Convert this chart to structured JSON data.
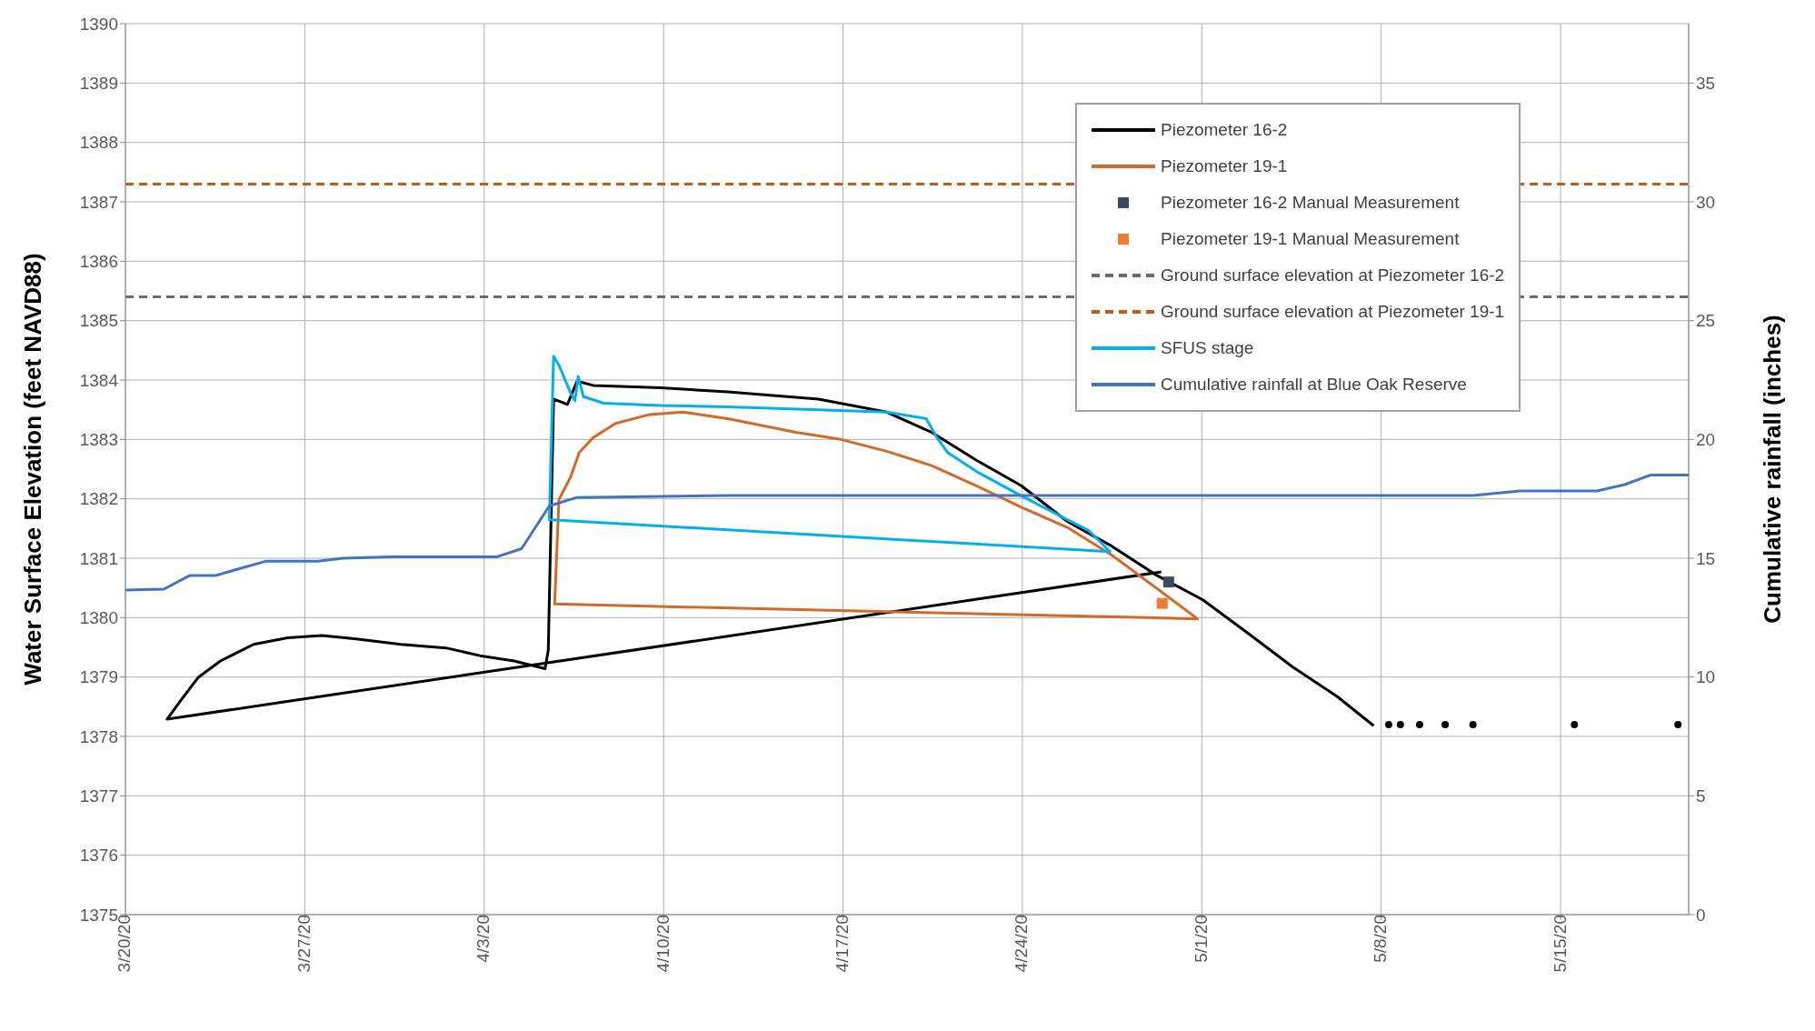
{
  "chart_data": {
    "type": "line",
    "ylabel": "Water Surface Elevation (feet NAVD88)",
    "y2label": "Cumulative rainfall (inches)",
    "xlim": [
      "--03-20",
      "--05-20"
    ],
    "xticks": [
      {
        "value": "--03-20",
        "label": "3/20/20"
      },
      {
        "value": "--03-27",
        "label": "3/27/20"
      },
      {
        "value": "--04-03",
        "label": "4/3/20"
      },
      {
        "value": "--04-10",
        "label": "4/10/20"
      },
      {
        "value": "--04-17",
        "label": "4/17/20"
      },
      {
        "value": "--04-24",
        "label": "4/24/20"
      },
      {
        "value": "--05-01",
        "label": "5/1/20"
      },
      {
        "value": "--05-08",
        "label": "5/8/20"
      },
      {
        "value": "--05-15",
        "label": "5/15/20"
      }
    ],
    "ylim": [
      1375,
      1390
    ],
    "yticks": [
      1375,
      1376,
      1377,
      1378,
      1379,
      1380,
      1381,
      1382,
      1383,
      1384,
      1385,
      1386,
      1387,
      1388,
      1389,
      1390
    ],
    "y2lim": [
      0,
      37.5
    ],
    "y2ticks": [
      0,
      5,
      10,
      15,
      20,
      25,
      30,
      35
    ],
    "grid": true,
    "legend": "top right",
    "series": [
      {
        "name": "Piezometer 16-2",
        "color": "#000000",
        "x": [
          "--04-29T10:00",
          "--03-21T15:00",
          "--03-22T04:00",
          "--03-22T20:00",
          "--03-23T17:00",
          "--03-25T00:00",
          "--03-26T08:00",
          "--03-27T16:00",
          "--03-29T00:00",
          "--03-30T18:00",
          "--04-01T12:00",
          "--04-02T20:00",
          "--04-04T04:00",
          "--04-05T09:00",
          "--04-05T12:00",
          "--04-05T17:00",
          "--04-06T06:00",
          "--04-06T15:00",
          "--04-07T06:00",
          "--04-09T21:00",
          "--04-12T12:00",
          "--04-16T01:00",
          "--04-18T17:00",
          "--04-20T11:00",
          "--04-22T05:00",
          "--04-23T23:00",
          "--04-25T18:00",
          "--04-27T12:00",
          "--04-29T06:00",
          "--05-01T01:00",
          "--05-02T19:00",
          "--05-04T13:00",
          "--05-06T07:00",
          "--05-07T17:00"
        ],
        "values": [
          1380.77,
          1378.29,
          1378.61,
          1378.99,
          1379.27,
          1379.55,
          1379.66,
          1379.7,
          1379.64,
          1379.55,
          1379.49,
          1379.36,
          1379.27,
          1379.14,
          1379.45,
          1383.68,
          1383.59,
          1383.98,
          1383.91,
          1383.87,
          1383.8,
          1383.68,
          1383.46,
          1383.12,
          1382.65,
          1382.22,
          1381.62,
          1381.2,
          1380.71,
          1380.3,
          1379.74,
          1379.17,
          1378.67,
          1378.18
        ]
      },
      {
        "name": "Piezometer 19-1",
        "color": "#d4692a",
        "x": [
          "--04-05T18:00",
          "--04-05T22:00",
          "--04-06T09:00",
          "--04-06T17:00",
          "--04-07T06:00",
          "--04-08T03:00",
          "--04-09T11:00",
          "--04-10T18:00",
          "--04-12T12:00",
          "--04-15T04:00",
          "--04-16T22:00",
          "--04-18T17:00",
          "--04-20T11:00",
          "--04-22T05:00",
          "--04-23T23:00",
          "--04-25T18:00",
          "--04-27T12:00",
          "--04-29T06:00",
          "--04-30T20:00",
          "--04-05T17:00"
        ],
        "values": [
          1380.23,
          1381.99,
          1382.37,
          1382.78,
          1383.03,
          1383.27,
          1383.42,
          1383.46,
          1383.35,
          1383.12,
          1383.0,
          1382.8,
          1382.56,
          1382.22,
          1381.86,
          1381.52,
          1381.05,
          1380.49,
          1379.98,
          1380.23
        ]
      },
      {
        "name": "Piezometer 16-2 Manual Measurement",
        "type": "scatter",
        "marker": "square",
        "color": "#3b4a5e",
        "x": [
          "--04-29T17:00"
        ],
        "values": [
          1380.6
        ]
      },
      {
        "name": "Piezometer 19-1 Manual Measurement",
        "type": "scatter",
        "marker": "square",
        "color": "#ed7d31",
        "x": [
          "--04-29T11:00"
        ],
        "values": [
          1380.24
        ]
      },
      {
        "name": "Ground surface elevation at Piezometer 16-2",
        "line_style": "dashed",
        "color": "#6b6b6b",
        "x": [
          "--03-20",
          "--05-20"
        ],
        "values": [
          1385.4,
          1385.4
        ]
      },
      {
        "name": "Ground surface elevation at Piezometer 19-1",
        "line_style": "dashed",
        "color": "#c55a11",
        "x": [
          "--03-20",
          "--05-20"
        ],
        "values": [
          1387.3,
          1387.3
        ]
      },
      {
        "name": "SFUS stage",
        "color": "#00b0f0",
        "x": [
          "--04-05T13:00",
          "--04-05T14:00",
          "--04-05T17:00",
          "--04-05T22:00",
          "--04-06T09:00",
          "--04-06T13:00",
          "--04-06T16:00",
          "--04-06T21:00",
          "--04-07T16:00",
          "--04-09T21:00",
          "--04-12T12:00",
          "--04-16T01:00",
          "--04-18T17:00",
          "--04-20T06:00",
          "--04-20T16:00",
          "--04-21T02:00",
          "--04-22T05:00",
          "--04-23T23:00",
          "--04-25T18:00",
          "--04-26T14:00",
          "--04-27T10:00",
          "--04-05T12:00"
        ],
        "values": [
          1381.65,
          1382.37,
          1384.4,
          1384.25,
          1383.78,
          1383.65,
          1384.06,
          1383.72,
          1383.61,
          1383.57,
          1383.55,
          1383.5,
          1383.46,
          1383.35,
          1383.03,
          1382.78,
          1382.46,
          1382.05,
          1381.65,
          1381.47,
          1381.11,
          1381.65
        ]
      },
      {
        "name": "Cumulative rainfall at Blue Oak Reserve",
        "axis": "y2",
        "color": "#4472c4",
        "x": [
          "--03-20",
          "--03-21T12:00",
          "--03-22T12:00",
          "--03-23T12:00",
          "--03-25T12:00",
          "--03-27T12:00",
          "--03-28T12:00",
          "--03-30T07:00",
          "--04-03T12:00",
          "--04-04T11:00",
          "--04-05T13:00",
          "--04-06T14:00",
          "--04-09T21:00",
          "--04-12T12:00",
          "--05-11T14:00",
          "--05-13T10:00",
          "--05-16T10:00",
          "--05-17T12:00",
          "--05-18T12:00",
          "--05-20"
        ],
        "values": [
          13.66,
          13.7,
          14.27,
          14.27,
          14.88,
          14.88,
          15.0,
          15.06,
          15.06,
          15.4,
          17.2,
          17.55,
          17.6,
          17.64,
          17.64,
          17.83,
          17.83,
          18.1,
          18.5,
          18.5
        ]
      },
      {
        "type": "scatter",
        "marker": "circle",
        "color": "#000000",
        "x": [
          "--05-08T07:00",
          "--05-08T18:00",
          "--05-09T12:00",
          "--05-10T12:00",
          "--05-11T14:00",
          "--05-15T13:00",
          "--05-19T14:00"
        ],
        "values": [
          1378.2,
          1378.2,
          1378.2,
          1378.2,
          1378.2,
          1378.2,
          1378.2
        ]
      }
    ]
  }
}
